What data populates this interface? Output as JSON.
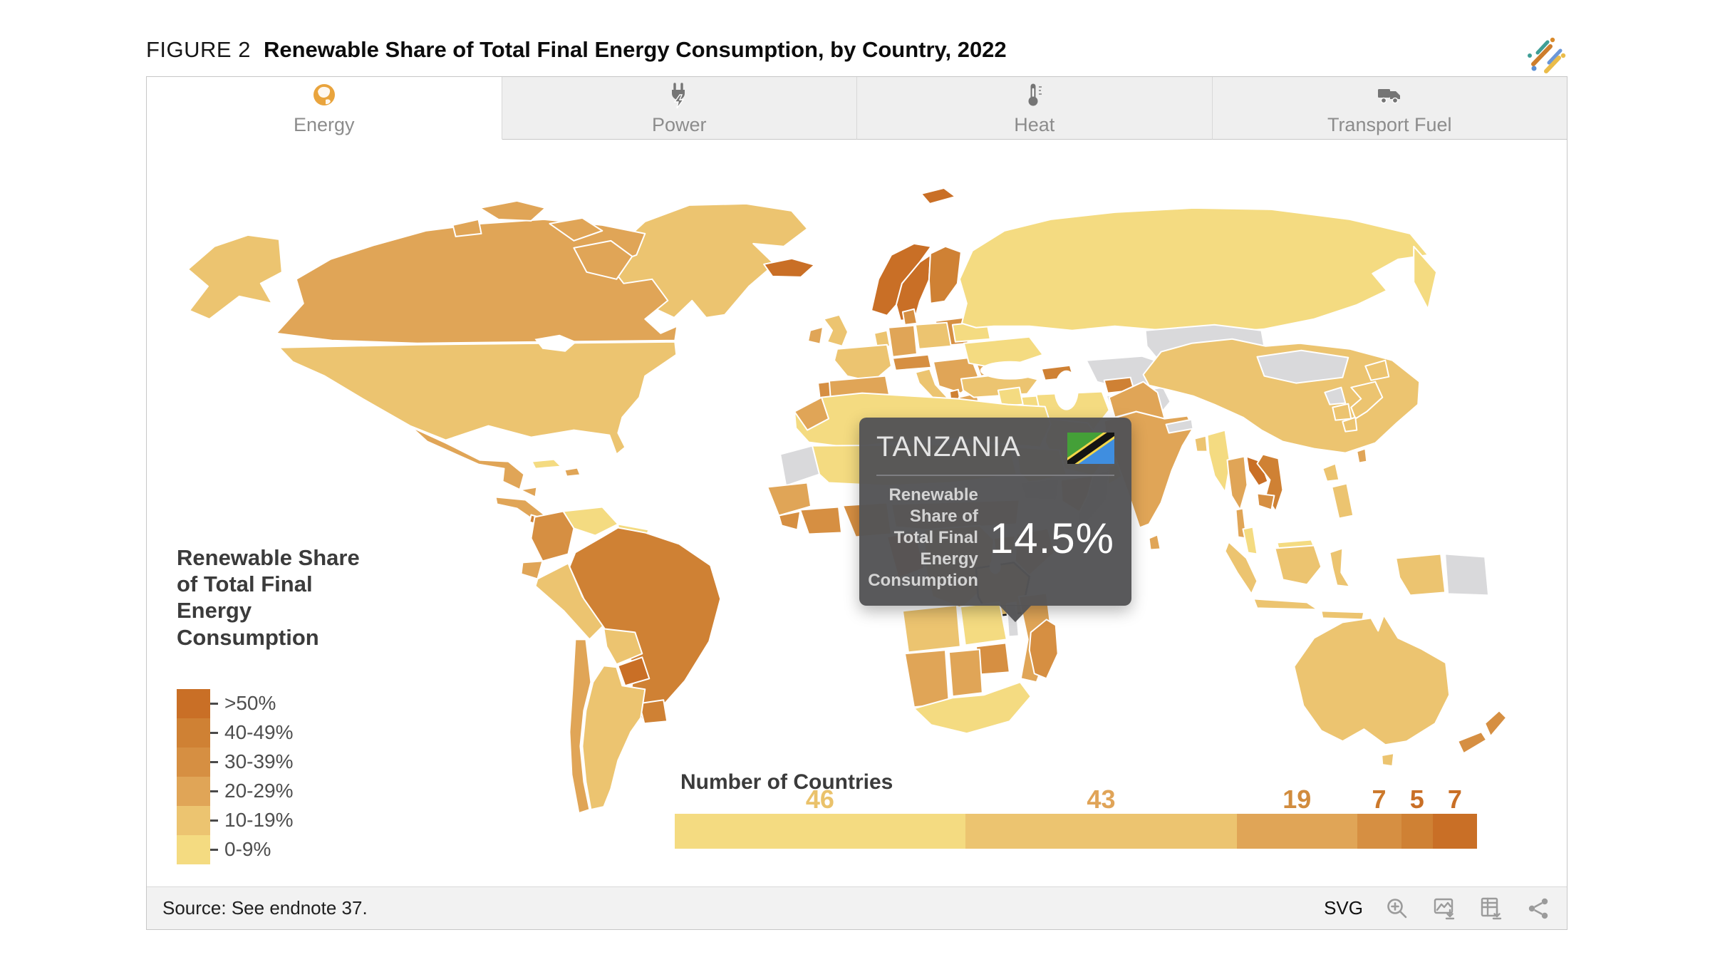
{
  "header": {
    "figure_label": "FIGURE 2",
    "title": "Renewable Share of Total Final Energy Consumption, by Country, 2022"
  },
  "tabs": [
    {
      "label": "Energy",
      "icon": "globe-icon",
      "active": true
    },
    {
      "label": "Power",
      "icon": "plug-icon",
      "active": false
    },
    {
      "label": "Heat",
      "icon": "thermometer-icon",
      "active": false
    },
    {
      "label": "Transport Fuel",
      "icon": "truck-icon",
      "active": false
    }
  ],
  "legend": {
    "title": "Renewable Share of Total Final Energy Consumption",
    "bins": [
      {
        "label": ">50%",
        "color": "#c96f26"
      },
      {
        "label": "40-49%",
        "color": "#cf8134"
      },
      {
        "label": "30-39%",
        "color": "#d68f42"
      },
      {
        "label": "20-29%",
        "color": "#e0a557"
      },
      {
        "label": "10-19%",
        "color": "#ecc470"
      },
      {
        "label": "0-9%",
        "color": "#f4db81"
      }
    ],
    "no_data_color": "#d9d9db"
  },
  "tooltip": {
    "country": "TANZANIA",
    "flag": "tanzania-flag",
    "metric_label": "Renewable Share of Total Final Energy Consumption",
    "value": "14.5%"
  },
  "bar": {
    "title": "Number of Countries",
    "segments": [
      {
        "label": "46",
        "value": 46,
        "bin": "0-9%",
        "bin_index": 5,
        "number_color": "#eac26b"
      },
      {
        "label": "43",
        "value": 43,
        "bin": "10-19%",
        "bin_index": 4,
        "number_color": "#e0a458"
      },
      {
        "label": "19",
        "value": 19,
        "bin": "20-29%",
        "bin_index": 3,
        "number_color": "#d18c3e"
      },
      {
        "label": "7",
        "value": 7,
        "bin": "30-39%",
        "bin_index": 2,
        "number_color": "#cc792c"
      },
      {
        "label": "5",
        "value": 5,
        "bin": "40-49%",
        "bin_index": 1,
        "number_color": "#c96f26"
      },
      {
        "label": "7",
        "value": 7,
        "bin": ">50%",
        "bin_index": 0,
        "number_color": "#c96f26"
      }
    ]
  },
  "footer": {
    "source": "Source: See endnote 37.",
    "export_label": "SVG",
    "icons": [
      "zoom-in-icon",
      "image-download-icon",
      "table-download-icon",
      "share-icon"
    ]
  },
  "chart_data": [
    {
      "type": "heatmap",
      "subtype": "choropleth-world-map",
      "title": "Renewable Share of Total Final Energy Consumption, by Country, 2022",
      "active_tab": "Energy",
      "bins": [
        ">50%",
        "40-49%",
        "30-39%",
        "20-29%",
        "10-19%",
        "0-9%"
      ],
      "bin_colors": [
        "#c96f26",
        "#cf8134",
        "#d68f42",
        "#e0a557",
        "#ecc470",
        "#f4db81"
      ],
      "no_data_color": "#d9d9db",
      "highlighted_country": {
        "name": "Tanzania",
        "value_pct": 14.5,
        "bin": "10-19%"
      },
      "legend_position": "left-middle"
    },
    {
      "type": "bar",
      "subtype": "horizontal-stacked",
      "title": "Number of Countries",
      "categories": [
        "0-9%",
        "10-19%",
        "20-29%",
        "30-39%",
        "40-49%",
        ">50%"
      ],
      "values": [
        46,
        43,
        19,
        7,
        5,
        7
      ],
      "total": 127,
      "data_labels": "above segments, colored per bin"
    }
  ]
}
